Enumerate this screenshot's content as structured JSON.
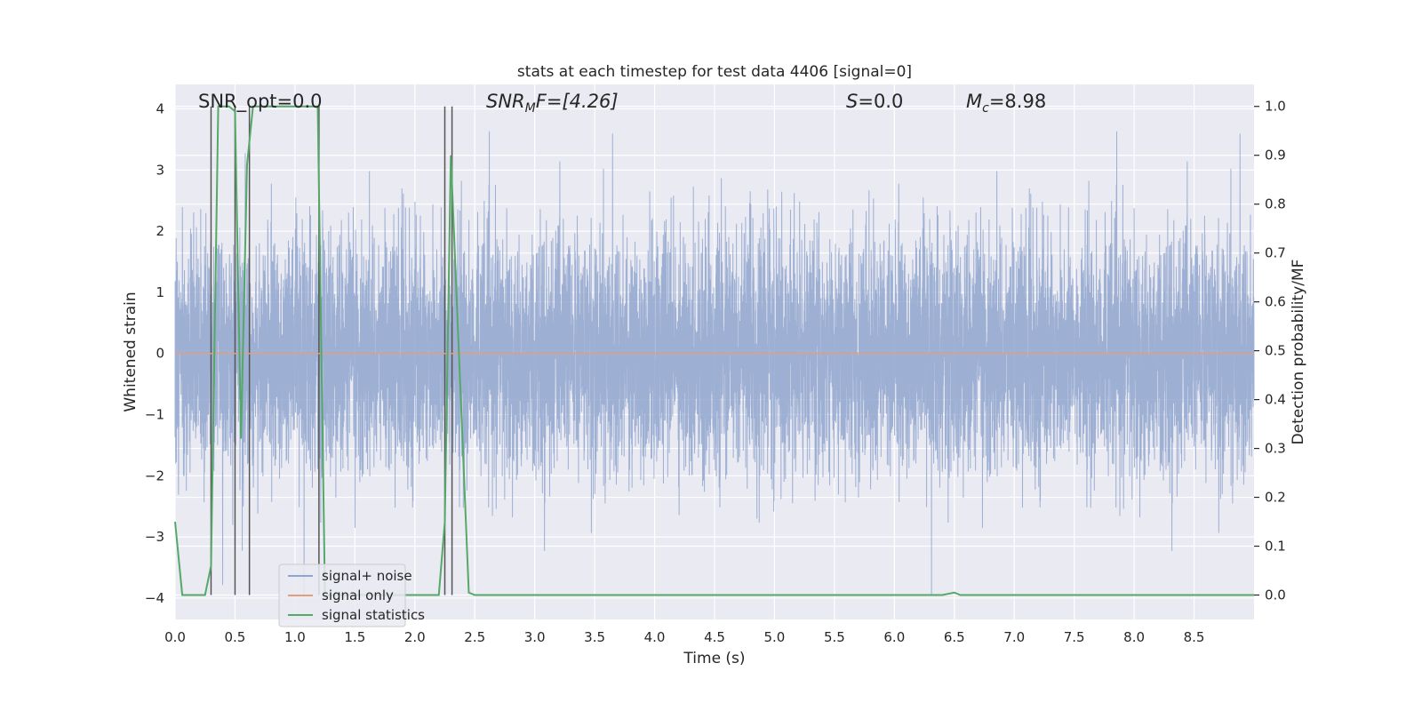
{
  "chart_data": {
    "type": "line",
    "title": "stats at each timestep for test data 4406 [signal=0]",
    "xlabel": "Time (s)",
    "ylabel_left": "Whitened strain",
    "ylabel_right": "Detection probability/MF",
    "xlim": [
      0.0,
      9.0
    ],
    "ylim_left": [
      -4.35,
      4.4
    ],
    "ylim_right": [
      -0.05,
      1.045
    ],
    "x_ticks": [
      "0.0",
      "0.5",
      "1.0",
      "1.5",
      "2.0",
      "2.5",
      "3.0",
      "3.5",
      "4.0",
      "4.5",
      "5.0",
      "5.5",
      "6.0",
      "6.5",
      "7.0",
      "7.5",
      "8.0",
      "8.5"
    ],
    "y_ticks_left": [
      "−4",
      "−3",
      "−2",
      "−1",
      "0",
      "1",
      "2",
      "3",
      "4"
    ],
    "y_ticks_right": [
      "0.0",
      "0.1",
      "0.2",
      "0.3",
      "0.4",
      "0.5",
      "0.6",
      "0.7",
      "0.8",
      "0.9",
      "1.0"
    ],
    "grid": true,
    "annotations": {
      "snr_opt": "SNR_opt=0.0",
      "snr_mf_base": "SNR",
      "snr_mf_sub": "M",
      "snr_mf_rest": "F=[4.26]",
      "s_sym": "S",
      "s_rest": "=0.0",
      "mc_base": "M",
      "mc_sub": "c",
      "mc_rest": "=8.98"
    },
    "legend": {
      "placement": "lower-left",
      "entries": [
        {
          "label": "signal+ noise",
          "color": "#8fa4ce"
        },
        {
          "label": "signal only",
          "color": "#e0a07f"
        },
        {
          "label": "signal statistics",
          "color": "#55a868"
        }
      ]
    },
    "series": [
      {
        "name": "signal+ noise",
        "axis": "left",
        "color": "#8fa4ce",
        "description_values": {
          "duration": 9.0,
          "typical_amplitude": 1.6,
          "max": 3.98,
          "min": -3.95
        }
      },
      {
        "name": "signal only",
        "axis": "left",
        "color": "#e0a07f",
        "x": [
          0.0,
          9.0
        ],
        "y": [
          0.0,
          0.0
        ]
      },
      {
        "name": "signal statistics",
        "axis": "right",
        "color": "#55a868",
        "x": [
          0.0,
          0.06,
          0.1,
          0.2,
          0.25,
          0.3,
          0.36,
          0.45,
          0.5,
          0.55,
          0.6,
          0.65,
          0.7,
          0.8,
          0.9,
          1.0,
          1.1,
          1.19,
          1.25,
          1.3,
          2.2,
          2.25,
          2.3,
          2.35,
          2.45,
          2.5,
          3.0,
          4.0,
          5.0,
          6.0,
          6.4,
          6.5,
          6.55,
          6.6,
          7.0,
          8.0,
          9.0
        ],
        "y": [
          0.15,
          0.0,
          0.0,
          0.0,
          0.0,
          0.06,
          1.0,
          1.0,
          0.99,
          0.32,
          0.88,
          1.0,
          1.0,
          1.0,
          1.0,
          1.0,
          1.0,
          1.0,
          0.0,
          0.0,
          0.0,
          0.15,
          0.9,
          0.6,
          0.005,
          0.0,
          0.0,
          0.0,
          0.0,
          0.0,
          0.0,
          0.005,
          0.0,
          0.0,
          0.0,
          0.0,
          0.0
        ]
      }
    ],
    "vertical_lines_x": [
      0.3,
      0.5,
      0.62,
      1.2,
      2.25,
      2.31
    ]
  }
}
